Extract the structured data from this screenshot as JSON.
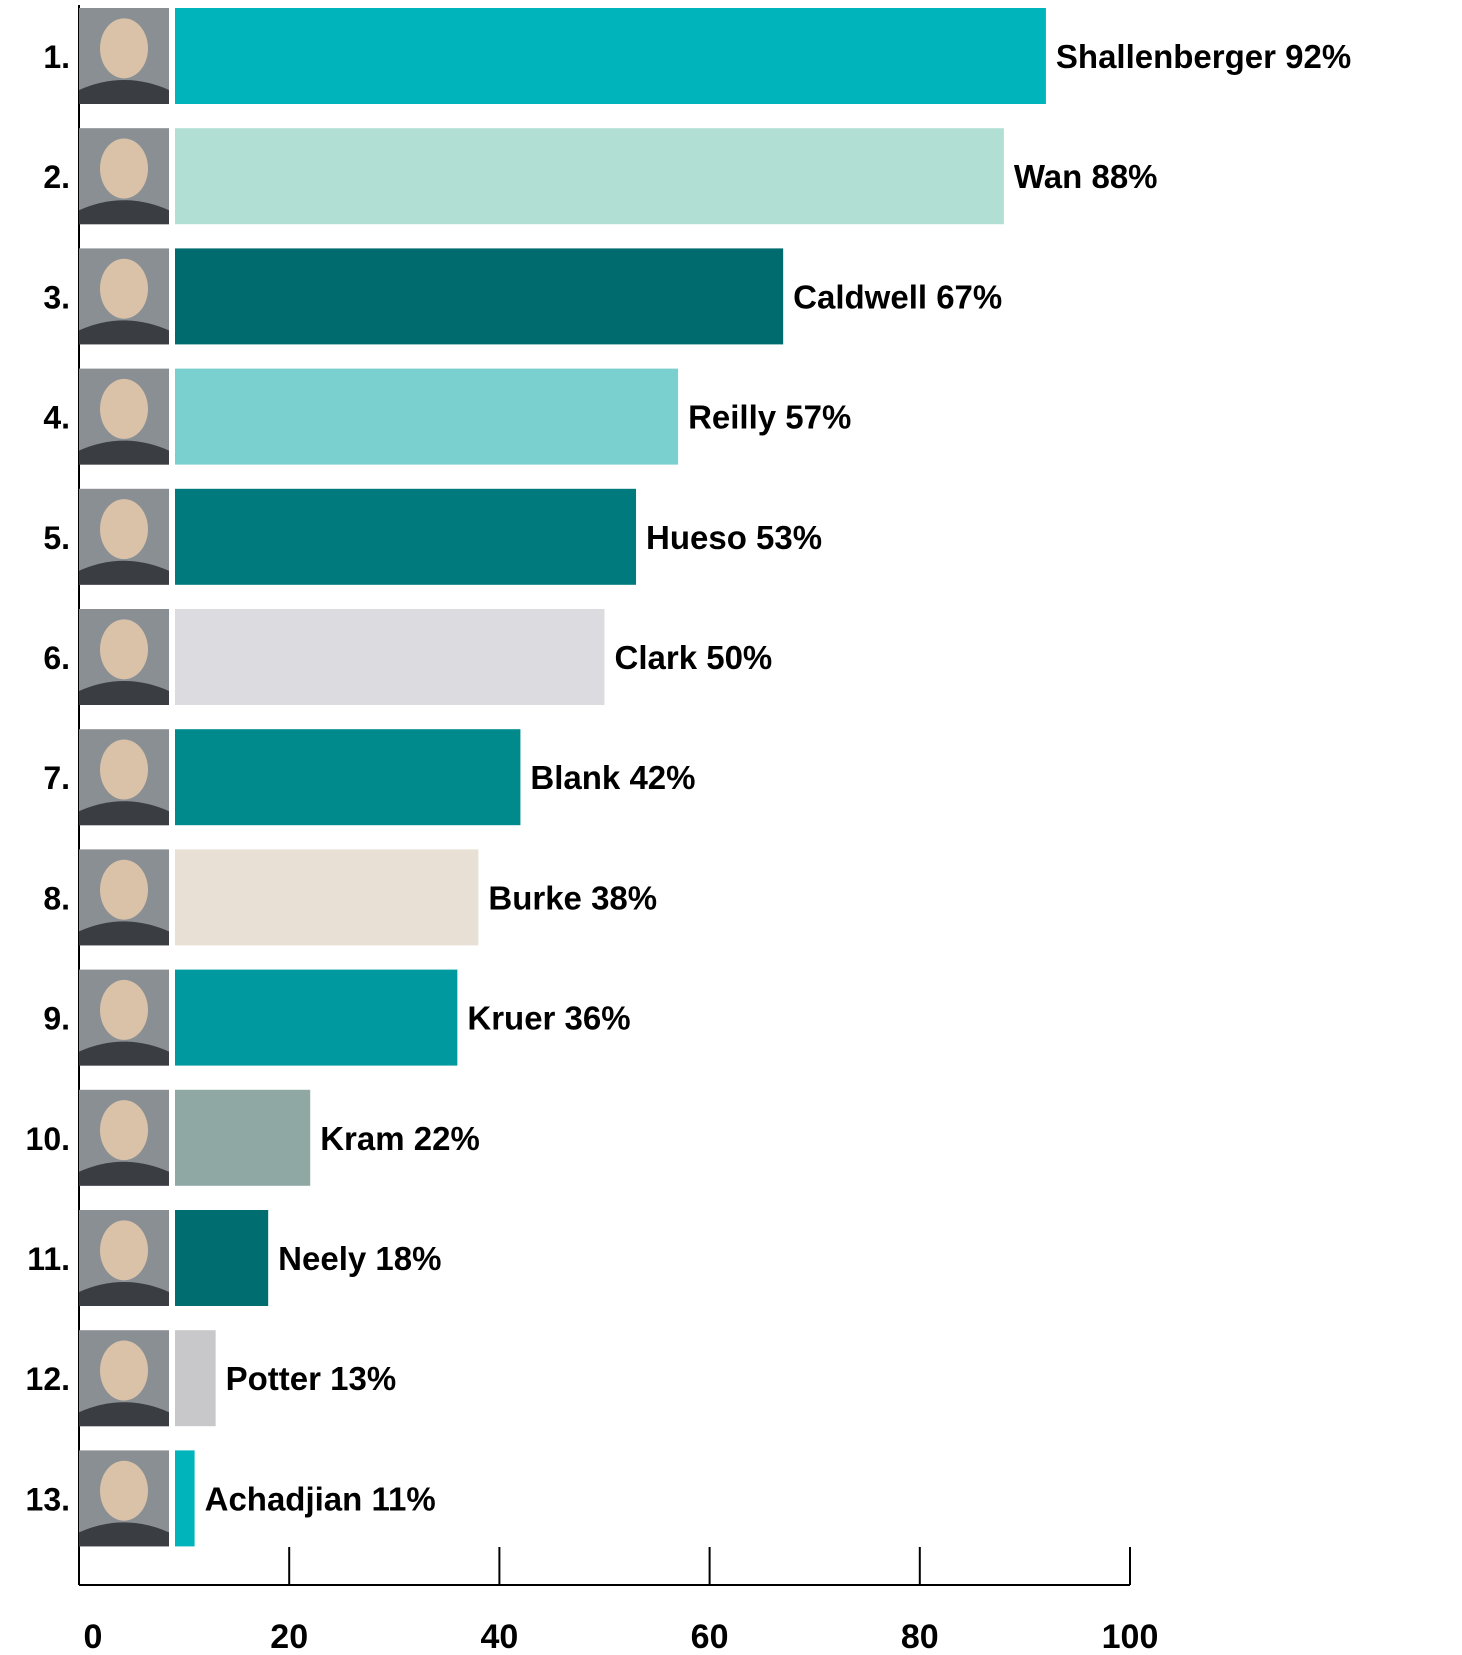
{
  "chart_data": {
    "type": "bar",
    "orientation": "horizontal",
    "xlim": [
      0,
      100
    ],
    "x_ticks": [
      0,
      20,
      40,
      60,
      80,
      100
    ],
    "grid": false,
    "rows": [
      {
        "rank": "1.",
        "name": "Shallenberger",
        "value": 92,
        "pct": "92%",
        "color": "#00b4bb",
        "photo": "portrait-photo"
      },
      {
        "rank": "2.",
        "name": "Wan",
        "value": 88,
        "pct": "88%",
        "color": "#b2dfd3",
        "photo": "portrait-photo"
      },
      {
        "rank": "3.",
        "name": "Caldwell",
        "value": 67,
        "pct": "67%",
        "color": "#006b6e",
        "photo": "portrait-photo"
      },
      {
        "rank": "4.",
        "name": "Reilly",
        "value": 57,
        "pct": "57%",
        "color": "#7acfcf",
        "photo": "portrait-photo"
      },
      {
        "rank": "5.",
        "name": "Hueso",
        "value": 53,
        "pct": "53%",
        "color": "#007a7c",
        "photo": "portrait-photo"
      },
      {
        "rank": "6.",
        "name": "Clark",
        "value": 50,
        "pct": "50%",
        "color": "#dcdce0",
        "photo": "portrait-photo"
      },
      {
        "rank": "7.",
        "name": "Blank",
        "value": 42,
        "pct": "42%",
        "color": "#008a8c",
        "photo": "portrait-photo"
      },
      {
        "rank": "8.",
        "name": "Burke",
        "value": 38,
        "pct": "38%",
        "color": "#e8e0d4",
        "photo": "portrait-photo"
      },
      {
        "rank": "9.",
        "name": "Kruer",
        "value": 36,
        "pct": "36%",
        "color": "#0099a0",
        "photo": "portrait-photo"
      },
      {
        "rank": "10.",
        "name": "Kram",
        "value": 22,
        "pct": "22%",
        "color": "#8fa8a4",
        "photo": "portrait-photo"
      },
      {
        "rank": "11.",
        "name": "Neely",
        "value": 18,
        "pct": "18%",
        "color": "#006e70",
        "photo": "portrait-photo"
      },
      {
        "rank": "12.",
        "name": "Potter",
        "value": 13,
        "pct": "13%",
        "color": "#c8c8ca",
        "photo": "portrait-photo"
      },
      {
        "rank": "13.",
        "name": "Achadjian",
        "value": 11,
        "pct": "11%",
        "color": "#00b4bb",
        "photo": "portrait-photo"
      }
    ]
  }
}
